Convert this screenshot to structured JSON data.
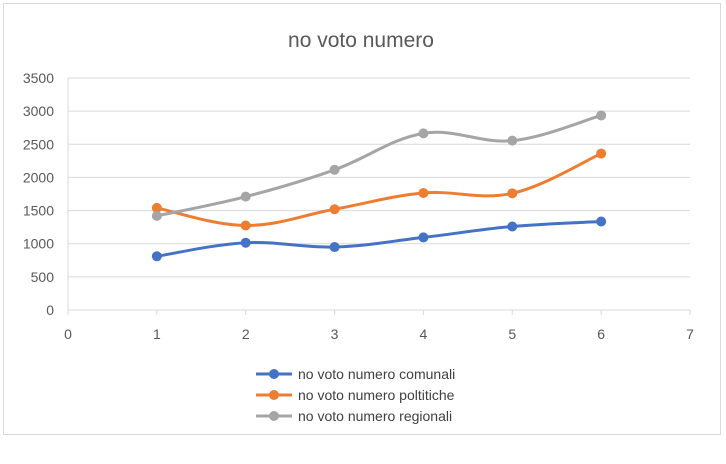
{
  "chart_data": {
    "type": "line",
    "title": "no voto numero",
    "xlabel": "",
    "ylabel": "",
    "x": [
      1,
      2,
      3,
      4,
      5,
      6
    ],
    "xlim": [
      0,
      7
    ],
    "ylim": [
      0,
      3500
    ],
    "x_ticks": [
      "0",
      "1",
      "2",
      "3",
      "4",
      "5",
      "6",
      "7"
    ],
    "y_ticks": [
      "0",
      "500",
      "1000",
      "1500",
      "2000",
      "2500",
      "3000",
      "3500"
    ],
    "grid": "horizontal",
    "legend_position": "bottom",
    "smooth": true,
    "series": [
      {
        "name": "no voto numero comunali",
        "color": "#4472c4",
        "values": [
          810,
          1015,
          950,
          1095,
          1260,
          1335
        ]
      },
      {
        "name": "no voto numero poltitiche",
        "color": "#ed7d31",
        "values": [
          1540,
          1275,
          1520,
          1765,
          1760,
          2360
        ]
      },
      {
        "name": "no voto numero regionali",
        "color": "#a5a5a5",
        "values": [
          1420,
          1710,
          2115,
          2665,
          2555,
          2935
        ]
      }
    ]
  }
}
